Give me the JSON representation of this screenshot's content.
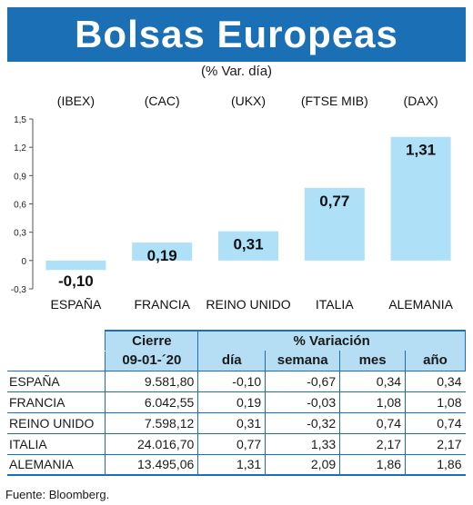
{
  "header": {
    "title": "Bolsas Europeas",
    "subtitle": "(% Var. día)"
  },
  "chart_data": {
    "type": "bar",
    "indices": [
      "(IBEX)",
      "(CAC)",
      "(UKX)",
      "(FTSE MIB)",
      "(DAX)"
    ],
    "categories": [
      "ESPAÑA",
      "FRANCIA",
      "REINO UNIDO",
      "ITALIA",
      "ALEMANIA"
    ],
    "values": [
      -0.1,
      0.19,
      0.31,
      0.77,
      1.31
    ],
    "value_labels": [
      "-0,10",
      "0,19",
      "0,31",
      "0,77",
      "1,31"
    ],
    "y_ticks": [
      "1,5",
      "1,2",
      "0,9",
      "0,6",
      "0,3",
      "0",
      "-0,3"
    ],
    "ylim": [
      -0.3,
      1.5
    ],
    "bar_color": "#aee0f7",
    "grid": false
  },
  "table": {
    "group_headers": [
      "Cierre",
      "% Variación"
    ],
    "sub_headers": [
      "09-01-´20",
      "día",
      "semana",
      "mes",
      "año"
    ],
    "rows": [
      {
        "name": "ESPAÑA",
        "cierre": "9.581,80",
        "dia": "-0,10",
        "semana": "-0,67",
        "mes": "0,34",
        "ano": "0,34"
      },
      {
        "name": "FRANCIA",
        "cierre": "6.042,55",
        "dia": "0,19",
        "semana": "-0,03",
        "mes": "1,08",
        "ano": "1,08"
      },
      {
        "name": "REINO UNIDO",
        "cierre": "7.598,12",
        "dia": "0,31",
        "semana": "-0,32",
        "mes": "0,74",
        "ano": "0,74"
      },
      {
        "name": "ITALIA",
        "cierre": "24.016,70",
        "dia": "0,77",
        "semana": "1,33",
        "mes": "2,17",
        "ano": "2,17"
      },
      {
        "name": "ALEMANIA",
        "cierre": "13.495,06",
        "dia": "1,31",
        "semana": "2,09",
        "mes": "1,86",
        "ano": "1,86"
      }
    ]
  },
  "footer": {
    "source": "Fuente: Bloomberg."
  },
  "colors": {
    "accent": "#1a6fb5",
    "header_fill": "#b5ddf3"
  }
}
